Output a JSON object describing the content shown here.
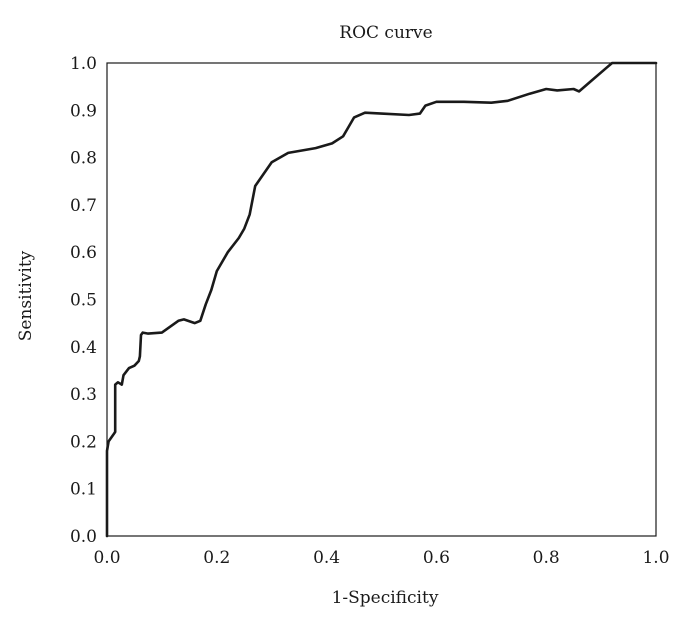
{
  "chart_data": {
    "type": "line",
    "title": "ROC curve",
    "xlabel": "1-Specificity",
    "ylabel": "Sensitivity",
    "xlim": [
      0,
      1
    ],
    "ylim": [
      0,
      1
    ],
    "x_ticks": [
      "0.0",
      "0.2",
      "0.4",
      "0.6",
      "0.8",
      "1.0"
    ],
    "y_ticks": [
      "0.0",
      "0.1",
      "0.2",
      "0.3",
      "0.4",
      "0.5",
      "0.6",
      "0.7",
      "0.8",
      "0.9",
      "1.0"
    ],
    "grid": false,
    "legend": "none",
    "line_color": "#1a1a1a",
    "series": [
      {
        "x": [
          0.0,
          0.0,
          0.003,
          0.012,
          0.015,
          0.015,
          0.02,
          0.027,
          0.03,
          0.04,
          0.05,
          0.058,
          0.06,
          0.062,
          0.065,
          0.075,
          0.1,
          0.13,
          0.14,
          0.16,
          0.17,
          0.18,
          0.19,
          0.2,
          0.22,
          0.24,
          0.25,
          0.26,
          0.27,
          0.3,
          0.33,
          0.38,
          0.41,
          0.43,
          0.44,
          0.45,
          0.47,
          0.5,
          0.55,
          0.57,
          0.58,
          0.6,
          0.65,
          0.7,
          0.73,
          0.77,
          0.8,
          0.82,
          0.85,
          0.86,
          0.88,
          0.91,
          0.92,
          1.0
        ],
        "y": [
          0.0,
          0.18,
          0.2,
          0.215,
          0.22,
          0.32,
          0.325,
          0.32,
          0.34,
          0.355,
          0.36,
          0.37,
          0.38,
          0.425,
          0.43,
          0.428,
          0.43,
          0.455,
          0.458,
          0.45,
          0.455,
          0.49,
          0.52,
          0.56,
          0.6,
          0.63,
          0.65,
          0.68,
          0.74,
          0.79,
          0.81,
          0.82,
          0.83,
          0.845,
          0.865,
          0.885,
          0.895,
          0.893,
          0.89,
          0.893,
          0.91,
          0.918,
          0.918,
          0.916,
          0.92,
          0.935,
          0.945,
          0.942,
          0.945,
          0.94,
          0.96,
          0.99,
          1.0,
          1.0
        ]
      }
    ]
  }
}
